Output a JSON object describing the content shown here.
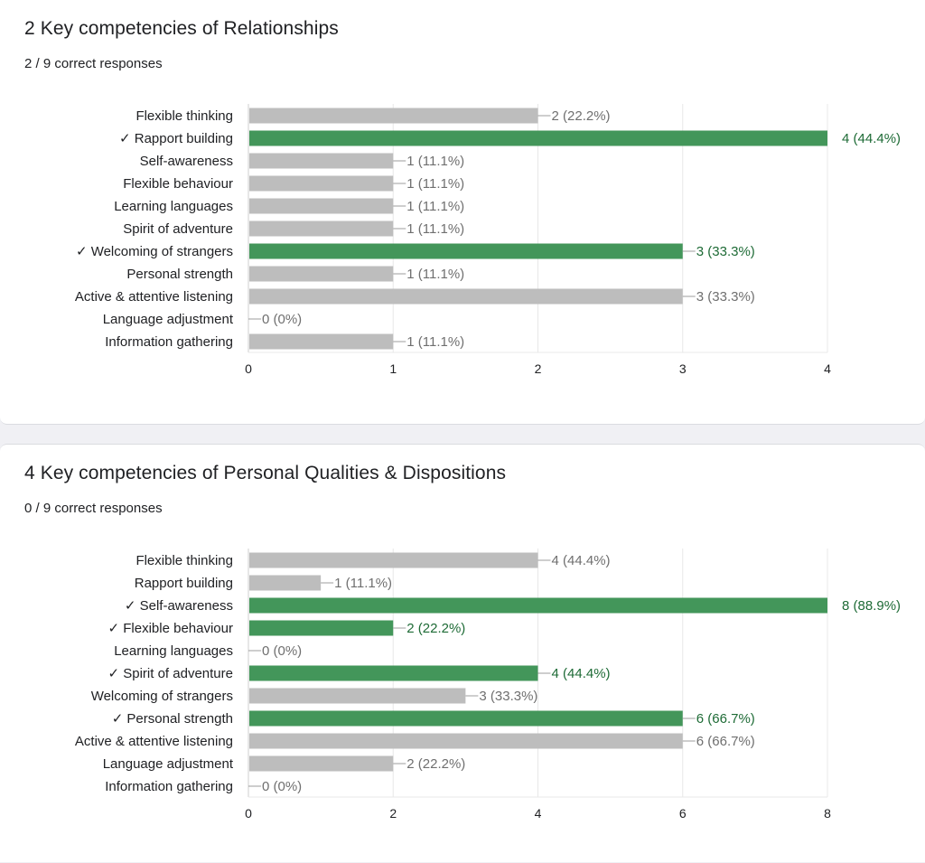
{
  "colors": {
    "correct": "#43965a",
    "incorrect": "#bdbdbd",
    "correct_text": "#1e6b36",
    "incorrect_text": "#6f6f6f",
    "grid": "#e8e8e8",
    "axis": "#cfcfcf"
  },
  "questions": [
    {
      "title": "2 Key competencies of Relationships",
      "score": "2 / 9 correct responses"
    },
    {
      "title": "4 Key competencies of Personal Qualities & Dispositions",
      "score": "0 / 9 correct responses"
    }
  ],
  "chart_data": [
    {
      "type": "bar",
      "orientation": "horizontal",
      "title": "2 Key competencies of Relationships",
      "categories": [
        "Flexible thinking",
        "Rapport building",
        "Self-awareness",
        "Flexible behaviour",
        "Learning languages",
        "Spirit of adventure",
        "Welcoming of strangers",
        "Personal strength",
        "Active & attentive listening",
        "Language adjustment",
        "Information gathering"
      ],
      "category_labels": [
        "Flexible thinking",
        "✓ Rapport building",
        "Self-awareness",
        "Flexible behaviour",
        "Learning languages",
        "Spirit of adventure",
        "✓ Welcoming of strangers",
        "Personal strength",
        "Active & attentive listening",
        "Language adjustment",
        "Information gathering"
      ],
      "values": [
        2,
        4,
        1,
        1,
        1,
        1,
        3,
        1,
        3,
        0,
        1
      ],
      "value_labels": [
        "2 (22.2%)",
        "4 (44.4%)",
        "1 (11.1%)",
        "1 (11.1%)",
        "1 (11.1%)",
        "1 (11.1%)",
        "3 (33.3%)",
        "1 (11.1%)",
        "3 (33.3%)",
        "0 (0%)",
        "1 (11.1%)"
      ],
      "correct": [
        false,
        true,
        false,
        false,
        false,
        false,
        true,
        false,
        false,
        false,
        false
      ],
      "xlim": [
        0,
        4
      ],
      "xticks": [
        0,
        1,
        2,
        3,
        4
      ],
      "grid": true
    },
    {
      "type": "bar",
      "orientation": "horizontal",
      "title": "4 Key competencies of Personal Qualities & Dispositions",
      "categories": [
        "Flexible thinking",
        "Rapport building",
        "Self-awareness",
        "Flexible behaviour",
        "Learning languages",
        "Spirit of adventure",
        "Welcoming of strangers",
        "Personal strength",
        "Active & attentive listening",
        "Language adjustment",
        "Information gathering"
      ],
      "category_labels": [
        "Flexible thinking",
        "Rapport building",
        "✓ Self-awareness",
        "✓ Flexible behaviour",
        "Learning languages",
        "✓ Spirit of adventure",
        "Welcoming of strangers",
        "✓ Personal strength",
        "Active & attentive listening",
        "Language adjustment",
        "Information gathering"
      ],
      "values": [
        4,
        1,
        8,
        2,
        0,
        4,
        3,
        6,
        6,
        2,
        0
      ],
      "value_labels": [
        "4 (44.4%)",
        "1 (11.1%)",
        "8 (88.9%)",
        "2 (22.2%)",
        "0 (0%)",
        "4 (44.4%)",
        "3 (33.3%)",
        "6 (66.7%)",
        "6 (66.7%)",
        "2 (22.2%)",
        "0 (0%)"
      ],
      "correct": [
        false,
        false,
        true,
        true,
        false,
        true,
        false,
        true,
        false,
        false,
        false
      ],
      "xlim": [
        0,
        8
      ],
      "xticks": [
        0,
        2,
        4,
        6,
        8
      ],
      "grid": true
    }
  ]
}
